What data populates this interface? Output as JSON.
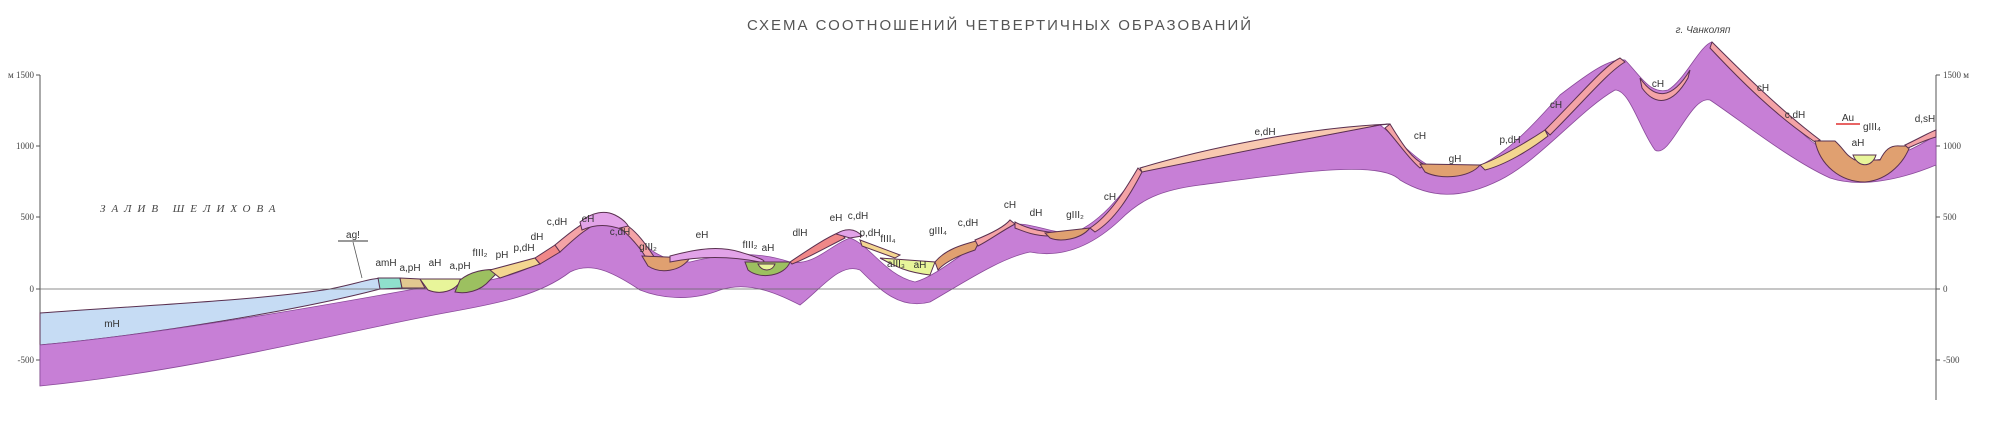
{
  "title": "СХЕМА СООТНОШЕНИЙ ЧЕТВЕРТИЧНЫХ ОБРАЗОВАНИЙ",
  "sea_label": "ЗАЛИВ ШЕЛИХОВА",
  "peak_label": "г. Чанколяп",
  "axis": {
    "left_ticks": [
      "м 1500",
      "1000",
      "500",
      "0",
      "-500"
    ],
    "right_ticks": [
      "1500 м",
      "1000",
      "500",
      "0",
      "-500"
    ]
  },
  "labels": {
    "ag": "ag!",
    "amH": "amH",
    "apH1": "a,pH",
    "aH1": "aH",
    "apH2": "a,pH",
    "fIII2a": "fIII₂",
    "pH": "pH",
    "pdH1": "p,dH",
    "dH1": "dH",
    "cdH1": "c,dH",
    "eH1": "eH",
    "cdH2": "c,dH",
    "gIII2a": "gIII₂",
    "eH2": "eH",
    "fIII2b": "fIII₂",
    "aH2": "aH",
    "dlH": "dlH",
    "eH3": "eH",
    "cdH3": "c,dH",
    "pdH2": "p,dH",
    "fIII4": "fIII₄",
    "aIII3": "aIII₃",
    "aH3": "aH",
    "gIII4a": "gIII₄",
    "cdH4": "c,dH",
    "cH1": "cH",
    "dH2": "dH",
    "gIII2b": "gIII₂",
    "cH2": "cH",
    "edH": "e,dH",
    "cH3": "cH",
    "gH": "gH",
    "pdH3": "p,dH",
    "cH4": "cH",
    "cH5": "cH",
    "cH6": "cH",
    "cdH5": "c,dH",
    "Au": "Au",
    "aH4": "aH",
    "gIII4b": "gIII₄",
    "dsH": "d,sH",
    "mH": "mH"
  },
  "colors": {
    "bedrock": "#c77fd6",
    "marine": "#c6dcf4",
    "colluvial": "#f4a3a6",
    "glacial": "#e0a070",
    "eluvial": "#e2a3e8",
    "alluvial": "#e8f59a",
    "fluvioglacial": "#9cc060",
    "proluvial": "#f3d690",
    "edH": "#f8c8b0",
    "amH": "#8fe0cc",
    "au": "#e03030"
  }
}
